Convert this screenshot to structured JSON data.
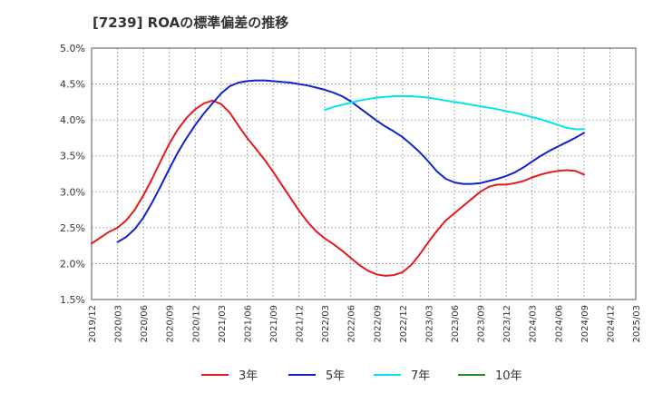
{
  "chart_data": {
    "type": "line",
    "title": "[7239]  ROAの標準偏差の推移",
    "xlabel": "",
    "ylabel": "",
    "ylim": [
      1.5,
      5.0
    ],
    "y_ticks": [
      "1.5%",
      "2.0%",
      "2.5%",
      "3.0%",
      "3.5%",
      "4.0%",
      "4.5%",
      "5.0%"
    ],
    "x_ticks": [
      "2019/12",
      "2020/03",
      "2020/06",
      "2020/09",
      "2020/12",
      "2021/03",
      "2021/06",
      "2021/09",
      "2021/12",
      "2022/03",
      "2022/06",
      "2022/09",
      "2022/12",
      "2023/03",
      "2023/06",
      "2023/09",
      "2023/12",
      "2024/03",
      "2024/06",
      "2024/09",
      "2024/12",
      "2025/03"
    ],
    "grid": true,
    "legend_position": "bottom",
    "series": [
      {
        "name": "3年",
        "color": "#e31a1c",
        "values": [
          2.28,
          2.36,
          2.44,
          2.5,
          2.6,
          2.75,
          2.95,
          3.18,
          3.43,
          3.67,
          3.87,
          4.03,
          4.15,
          4.23,
          4.27,
          4.22,
          4.1,
          3.92,
          3.75,
          3.6,
          3.45,
          3.28,
          3.1,
          2.92,
          2.74,
          2.58,
          2.45,
          2.35,
          2.27,
          2.18,
          2.08,
          1.98,
          1.9,
          1.85,
          1.83,
          1.84,
          1.88,
          1.98,
          2.13,
          2.3,
          2.46,
          2.6,
          2.7,
          2.8,
          2.9,
          3.0,
          3.07,
          3.1,
          3.1,
          3.12,
          3.15,
          3.2,
          3.24,
          3.27,
          3.29,
          3.3,
          3.29,
          3.24
        ]
      },
      {
        "name": "5年",
        "color": "#1122cc",
        "values": [
          null,
          null,
          null,
          2.3,
          2.37,
          2.48,
          2.64,
          2.85,
          3.08,
          3.32,
          3.55,
          3.75,
          3.93,
          4.09,
          4.23,
          4.37,
          4.47,
          4.52,
          4.54,
          4.55,
          4.55,
          4.54,
          4.53,
          4.52,
          4.5,
          4.48,
          4.45,
          4.42,
          4.38,
          4.33,
          4.26,
          4.17,
          4.08,
          3.99,
          3.91,
          3.84,
          3.76,
          3.66,
          3.55,
          3.42,
          3.28,
          3.18,
          3.13,
          3.11,
          3.11,
          3.12,
          3.15,
          3.18,
          3.22,
          3.27,
          3.34,
          3.42,
          3.5,
          3.57,
          3.63,
          3.69,
          3.75,
          3.82
        ]
      },
      {
        "name": "7年",
        "color": "#00e5ee",
        "values": [
          null,
          null,
          null,
          null,
          null,
          null,
          null,
          null,
          null,
          null,
          null,
          null,
          null,
          null,
          null,
          null,
          null,
          null,
          null,
          null,
          null,
          null,
          null,
          null,
          null,
          null,
          null,
          4.14,
          4.18,
          4.21,
          4.24,
          4.27,
          4.29,
          4.31,
          4.32,
          4.33,
          4.33,
          4.33,
          4.32,
          4.31,
          4.29,
          4.27,
          4.25,
          4.23,
          4.21,
          4.19,
          4.17,
          4.15,
          4.12,
          4.1,
          4.07,
          4.04,
          4.01,
          3.97,
          3.93,
          3.89,
          3.87,
          3.87
        ]
      },
      {
        "name": "10年",
        "color": "#228b22",
        "values": []
      }
    ]
  }
}
